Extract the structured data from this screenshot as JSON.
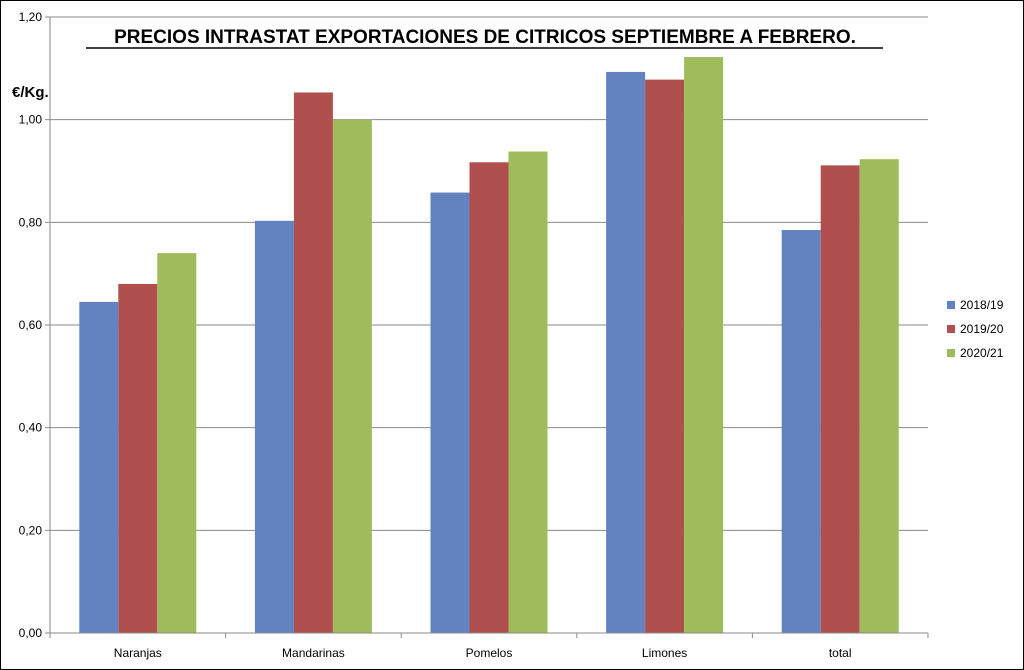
{
  "chart_data": {
    "type": "bar",
    "title": "PRECIOS INTRASTAT EXPORTACIONES DE CITRICOS  SEPTIEMBRE A FEBRERO.",
    "ylabel": "€/Kg.",
    "xlabel": "",
    "ylim": [
      0,
      1.2
    ],
    "yticks": [
      "0,00",
      "0,20",
      "0,40",
      "0,60",
      "0,80",
      "1,00",
      "1,20"
    ],
    "grid": true,
    "legend_position": "right",
    "categories": [
      "Naranjas",
      "Mandarinas",
      "Pomelos",
      "Limones",
      "total"
    ],
    "series": [
      {
        "name": "2018/19",
        "color": "#6283bf",
        "values": [
          0.645,
          0.803,
          0.858,
          1.093,
          0.785
        ]
      },
      {
        "name": "2019/20",
        "color": "#b0504e",
        "values": [
          0.68,
          1.053,
          0.917,
          1.078,
          0.911
        ]
      },
      {
        "name": "2020/21",
        "color": "#a0bb5b",
        "values": [
          0.74,
          1.0,
          0.938,
          1.122,
          0.923
        ]
      }
    ]
  }
}
